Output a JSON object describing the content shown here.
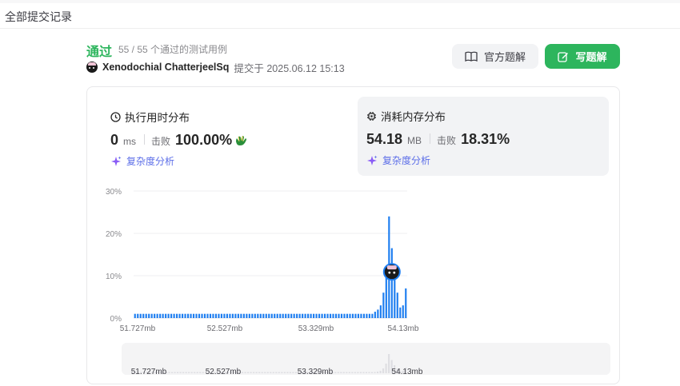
{
  "header": {
    "title": "全部提交记录"
  },
  "submission": {
    "status": "通过",
    "cases": "55 / 55 个通过的测试用例",
    "username": "Xenodochial ChatterjeelSq",
    "submitted_at": "提交于 2025.06.12 15:13",
    "status_color": "#2db55d"
  },
  "buttons": {
    "solution_label": "官方题解",
    "write_label": "写题解"
  },
  "runtime": {
    "title": "执行用时分布",
    "value": "0",
    "unit": "ms",
    "beat_label": "击败",
    "beat_pct": "100.00%",
    "complexity_label": "复杂度分析"
  },
  "memory": {
    "title": "消耗内存分布",
    "value": "54.18",
    "unit": "MB",
    "beat_label": "击败",
    "beat_pct": "18.31%",
    "complexity_label": "复杂度分析"
  },
  "chart_data": {
    "type": "bar",
    "title": "消耗内存分布",
    "xlabel": "",
    "ylabel": "",
    "ylim": [
      0,
      30
    ],
    "y_ticks": [
      "0%",
      "10%",
      "20%",
      "30%"
    ],
    "x_ticks": [
      "51.727mb",
      "52.527mb",
      "53.329mb",
      "54.13mb"
    ],
    "values": [
      1,
      1,
      1,
      1,
      1,
      1,
      1,
      1,
      1,
      1,
      1,
      1,
      1,
      1,
      1,
      1,
      1,
      1,
      1,
      1,
      1,
      1,
      1,
      1,
      1,
      1,
      1,
      1,
      1,
      1,
      1,
      1,
      1,
      1,
      1,
      1,
      1,
      1,
      1,
      1,
      1,
      1,
      1,
      1,
      1,
      1,
      1,
      1,
      1,
      1,
      1,
      1,
      1,
      1,
      1,
      1,
      1,
      1,
      1,
      1,
      1,
      1,
      1,
      1,
      1,
      1,
      1,
      1,
      1,
      1,
      1,
      1,
      1,
      1,
      1,
      1,
      1,
      1,
      1,
      1,
      1,
      1,
      1,
      1,
      1,
      1,
      1.5,
      2,
      3,
      6,
      12,
      24,
      16.5,
      10,
      6,
      2.5,
      3,
      7
    ],
    "highlight_index": 92,
    "bar_color": "#1e7ef0",
    "minimap_x_ticks": [
      "51.727mb",
      "52.527mb",
      "53.329mb",
      "54.13mb"
    ]
  }
}
